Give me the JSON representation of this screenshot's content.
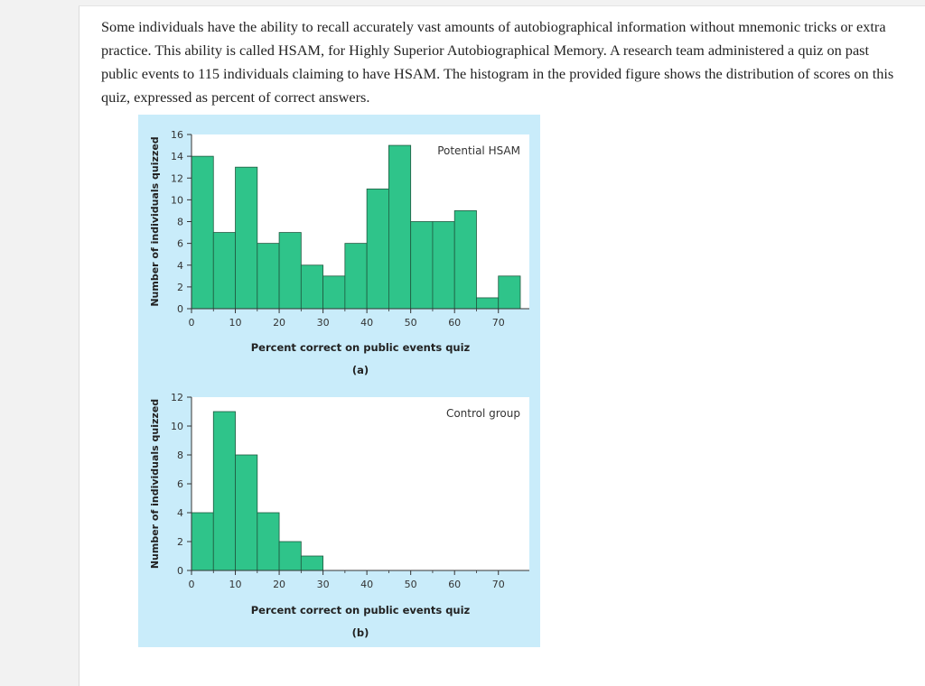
{
  "question": {
    "text": "Some individuals have the ability to recall accurately vast amounts of autobiographical information without mnemonic tricks or extra practice. This ability is called HSAM, for Highly Superior Autobiographical Memory. A research team administered a quiz on past public events to 115 individuals claiming to have HSAM. The histogram in the provided figure shows the distribution of scores on this quiz, expressed as percent of correct answers."
  },
  "colors": {
    "figure_bg": "#c9ecfa",
    "bar_fill": "#2fc48a",
    "bar_stroke": "#1f5a40",
    "axis": "#333333"
  },
  "chart_data": [
    {
      "type": "bar",
      "panel": "(a)",
      "annotation": "Potential HSAM",
      "xlabel": "Percent correct on public events quiz",
      "ylabel": "Number of individuals quizzed",
      "bin_width": 5,
      "bin_starts": [
        0,
        5,
        10,
        15,
        20,
        25,
        30,
        35,
        40,
        45,
        50,
        55,
        60,
        65,
        70
      ],
      "values": [
        14,
        7,
        13,
        6,
        7,
        4,
        3,
        6,
        11,
        15,
        8,
        8,
        9,
        1,
        3
      ],
      "xlim": [
        0,
        75
      ],
      "ylim": [
        0,
        16
      ],
      "xticks": [
        "0",
        "10",
        "20",
        "30",
        "40",
        "50",
        "60",
        "70"
      ],
      "yticks": [
        "0",
        "2",
        "4",
        "6",
        "8",
        "10",
        "12",
        "14",
        "16"
      ]
    },
    {
      "type": "bar",
      "panel": "(b)",
      "annotation": "Control group",
      "xlabel": "Percent correct on public events quiz",
      "ylabel": "Number of individuals quizzed",
      "bin_width": 5,
      "bin_starts": [
        0,
        5,
        10,
        15,
        20,
        25
      ],
      "values": [
        4,
        11,
        8,
        4,
        2,
        1
      ],
      "xlim": [
        0,
        75
      ],
      "ylim": [
        0,
        12
      ],
      "xticks": [
        "0",
        "10",
        "20",
        "30",
        "40",
        "50",
        "60",
        "70"
      ],
      "yticks": [
        "0",
        "2",
        "4",
        "6",
        "8",
        "10",
        "12"
      ]
    }
  ]
}
